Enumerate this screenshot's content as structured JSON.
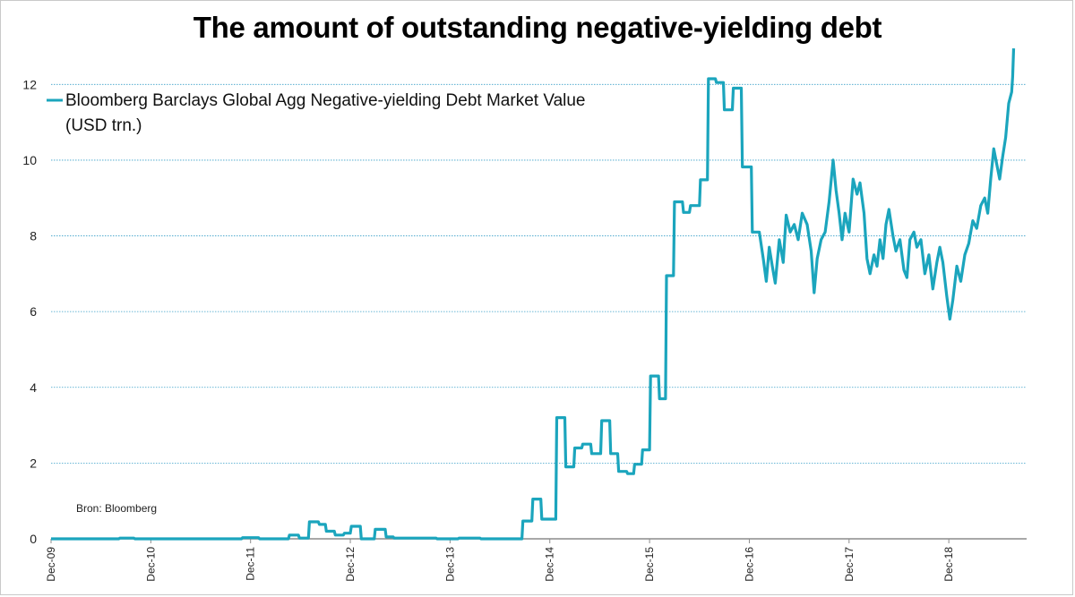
{
  "chart_data": {
    "type": "line",
    "title": "The amount of outstanding negative-yielding debt",
    "series": [
      {
        "name": "Bloomberg Barclays Global Agg Negative-yielding Debt Market Value",
        "unit_label": "(USD trn.)",
        "color": "#1ba5bd",
        "points": [
          [
            2009.92,
            0.0
          ],
          [
            2010.6,
            0.0
          ],
          [
            2010.61,
            0.02
          ],
          [
            2010.75,
            0.02
          ],
          [
            2010.76,
            0.0
          ],
          [
            2011.83,
            0.0
          ],
          [
            2011.84,
            0.03
          ],
          [
            2012.0,
            0.03
          ],
          [
            2012.01,
            0.0
          ],
          [
            2012.3,
            0.0
          ],
          [
            2012.31,
            0.1
          ],
          [
            2012.4,
            0.1
          ],
          [
            2012.41,
            0.02
          ],
          [
            2012.5,
            0.02
          ],
          [
            2012.51,
            0.45
          ],
          [
            2012.6,
            0.45
          ],
          [
            2012.61,
            0.38
          ],
          [
            2012.67,
            0.38
          ],
          [
            2012.68,
            0.2
          ],
          [
            2012.76,
            0.2
          ],
          [
            2012.77,
            0.1
          ],
          [
            2012.85,
            0.1
          ],
          [
            2012.86,
            0.15
          ],
          [
            2012.92,
            0.15
          ],
          [
            2012.93,
            0.33
          ],
          [
            2013.02,
            0.33
          ],
          [
            2013.03,
            0.0
          ],
          [
            2013.16,
            0.0
          ],
          [
            2013.17,
            0.25
          ],
          [
            2013.27,
            0.25
          ],
          [
            2013.28,
            0.05
          ],
          [
            2013.35,
            0.05
          ],
          [
            2013.36,
            0.02
          ],
          [
            2013.78,
            0.02
          ],
          [
            2013.79,
            0.0
          ],
          [
            2014.0,
            0.0
          ],
          [
            2014.01,
            0.02
          ],
          [
            2014.22,
            0.02
          ],
          [
            2014.23,
            0.0
          ],
          [
            2014.64,
            0.0
          ],
          [
            2014.65,
            0.47
          ],
          [
            2014.74,
            0.47
          ],
          [
            2014.75,
            1.05
          ],
          [
            2014.83,
            1.05
          ],
          [
            2014.84,
            0.52
          ],
          [
            2014.98,
            0.52
          ],
          [
            2014.99,
            3.2
          ],
          [
            2015.07,
            3.2
          ],
          [
            2015.08,
            1.9
          ],
          [
            2015.16,
            1.9
          ],
          [
            2015.17,
            2.4
          ],
          [
            2015.24,
            2.4
          ],
          [
            2015.25,
            2.5
          ],
          [
            2015.33,
            2.5
          ],
          [
            2015.34,
            2.25
          ],
          [
            2015.43,
            2.25
          ],
          [
            2015.44,
            3.12
          ],
          [
            2015.52,
            3.12
          ],
          [
            2015.53,
            2.25
          ],
          [
            2015.6,
            2.25
          ],
          [
            2015.61,
            1.78
          ],
          [
            2015.69,
            1.78
          ],
          [
            2015.7,
            1.72
          ],
          [
            2015.76,
            1.72
          ],
          [
            2015.77,
            1.97
          ],
          [
            2015.84,
            1.97
          ],
          [
            2015.85,
            2.35
          ],
          [
            2015.92,
            2.35
          ],
          [
            2015.93,
            4.3
          ],
          [
            2016.01,
            4.3
          ],
          [
            2016.02,
            3.7
          ],
          [
            2016.08,
            3.7
          ],
          [
            2016.09,
            6.95
          ],
          [
            2016.16,
            6.95
          ],
          [
            2016.17,
            8.9
          ],
          [
            2016.25,
            8.9
          ],
          [
            2016.26,
            8.62
          ],
          [
            2016.32,
            8.62
          ],
          [
            2016.33,
            8.8
          ],
          [
            2016.42,
            8.8
          ],
          [
            2016.43,
            9.48
          ],
          [
            2016.5,
            9.48
          ],
          [
            2016.51,
            12.15
          ],
          [
            2016.58,
            12.15
          ],
          [
            2016.59,
            12.05
          ],
          [
            2016.66,
            12.05
          ],
          [
            2016.67,
            11.33
          ],
          [
            2016.75,
            11.33
          ],
          [
            2016.76,
            11.9
          ],
          [
            2016.84,
            11.9
          ],
          [
            2016.85,
            9.82
          ],
          [
            2016.94,
            9.82
          ],
          [
            2016.95,
            8.1
          ],
          [
            2017.02,
            8.1
          ],
          [
            2017.06,
            7.4
          ],
          [
            2017.09,
            6.8
          ],
          [
            2017.12,
            7.7
          ],
          [
            2017.15,
            7.2
          ],
          [
            2017.18,
            6.75
          ],
          [
            2017.22,
            7.9
          ],
          [
            2017.26,
            7.3
          ],
          [
            2017.29,
            8.55
          ],
          [
            2017.33,
            8.1
          ],
          [
            2017.37,
            8.3
          ],
          [
            2017.41,
            7.9
          ],
          [
            2017.45,
            8.6
          ],
          [
            2017.5,
            8.3
          ],
          [
            2017.54,
            7.6
          ],
          [
            2017.57,
            6.5
          ],
          [
            2017.6,
            7.4
          ],
          [
            2017.64,
            7.9
          ],
          [
            2017.68,
            8.1
          ],
          [
            2017.72,
            8.9
          ],
          [
            2017.76,
            10.0
          ],
          [
            2017.79,
            9.2
          ],
          [
            2017.82,
            8.6
          ],
          [
            2017.85,
            7.9
          ],
          [
            2017.88,
            8.6
          ],
          [
            2017.92,
            8.1
          ],
          [
            2017.96,
            9.5
          ],
          [
            2018.0,
            9.1
          ],
          [
            2018.03,
            9.4
          ],
          [
            2018.07,
            8.6
          ],
          [
            2018.1,
            7.4
          ],
          [
            2018.13,
            7.0
          ],
          [
            2018.17,
            7.5
          ],
          [
            2018.2,
            7.2
          ],
          [
            2018.23,
            7.9
          ],
          [
            2018.26,
            7.4
          ],
          [
            2018.29,
            8.3
          ],
          [
            2018.32,
            8.7
          ],
          [
            2018.36,
            8.0
          ],
          [
            2018.39,
            7.6
          ],
          [
            2018.43,
            7.9
          ],
          [
            2018.47,
            7.1
          ],
          [
            2018.5,
            6.9
          ],
          [
            2018.53,
            7.9
          ],
          [
            2018.57,
            8.1
          ],
          [
            2018.6,
            7.7
          ],
          [
            2018.64,
            7.9
          ],
          [
            2018.68,
            7.0
          ],
          [
            2018.72,
            7.5
          ],
          [
            2018.76,
            6.6
          ],
          [
            2018.8,
            7.3
          ],
          [
            2018.83,
            7.7
          ],
          [
            2018.86,
            7.3
          ],
          [
            2018.9,
            6.4
          ],
          [
            2018.93,
            5.8
          ],
          [
            2018.96,
            6.3
          ],
          [
            2019.0,
            7.2
          ],
          [
            2019.04,
            6.8
          ],
          [
            2019.08,
            7.5
          ],
          [
            2019.12,
            7.8
          ],
          [
            2019.16,
            8.4
          ],
          [
            2019.2,
            8.2
          ],
          [
            2019.24,
            8.8
          ],
          [
            2019.28,
            9.0
          ],
          [
            2019.31,
            8.6
          ],
          [
            2019.34,
            9.5
          ],
          [
            2019.37,
            10.3
          ],
          [
            2019.4,
            9.9
          ],
          [
            2019.43,
            9.5
          ],
          [
            2019.46,
            10.1
          ],
          [
            2019.49,
            10.6
          ],
          [
            2019.52,
            11.5
          ],
          [
            2019.55,
            11.8
          ],
          [
            2019.56,
            12.2
          ],
          [
            2019.57,
            12.95
          ]
        ]
      }
    ],
    "xticks": [
      {
        "x": 2009.92,
        "label": "Dec-09"
      },
      {
        "x": 2010.92,
        "label": "Dec-10"
      },
      {
        "x": 2011.92,
        "label": "Dec-11"
      },
      {
        "x": 2012.92,
        "label": "Dec-12"
      },
      {
        "x": 2013.92,
        "label": "Dec-13"
      },
      {
        "x": 2014.92,
        "label": "Dec-14"
      },
      {
        "x": 2015.92,
        "label": "Dec-15"
      },
      {
        "x": 2016.92,
        "label": "Dec-16"
      },
      {
        "x": 2017.92,
        "label": "Dec-17"
      },
      {
        "x": 2018.92,
        "label": "Dec-18"
      }
    ],
    "xlim": [
      2009.92,
      2019.7
    ],
    "ylim": [
      0,
      13
    ],
    "yticks": [
      0,
      2,
      4,
      6,
      8,
      10,
      12
    ],
    "grid": "horizontal dotted",
    "legend_position": "top-left",
    "source_note": "Bron: Bloomberg"
  }
}
